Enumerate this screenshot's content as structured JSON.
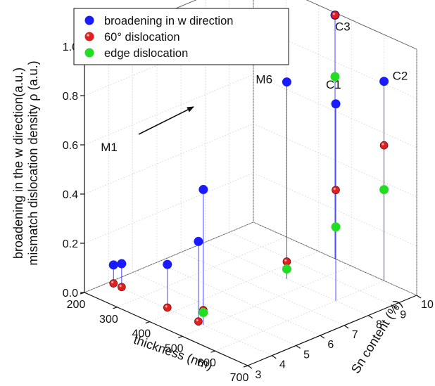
{
  "chart_data": {
    "type": "scatter",
    "dimensions": 3,
    "title": "",
    "xlabel": "thickness (nm)",
    "ylabel": "Sn content (%)",
    "zlabel_lines": [
      "broadening in the w direction(a.u.)",
      "mismatch dislocation density ρ (a.u.)"
    ],
    "x_ticks": [
      "200",
      "300",
      "400",
      "500",
      "600",
      "700"
    ],
    "y_ticks": [
      "3",
      "4",
      "5",
      "6",
      "7",
      "8",
      "9",
      "10"
    ],
    "z_ticks": [
      "0.0",
      "0.2",
      "0.4",
      "0.6",
      "0.8",
      "1.0"
    ],
    "xlim": [
      200,
      700
    ],
    "ylim": [
      3,
      10
    ],
    "zlim": [
      0,
      1
    ],
    "grid": true,
    "legend_position": "top-left",
    "series": [
      {
        "name": "broadening in w direction",
        "color": "#1a1aff",
        "points": [
          {
            "x": 215,
            "y": 4.0,
            "z": 0.08
          },
          {
            "x": 240,
            "y": 4.0,
            "z": 0.1
          },
          {
            "x": 380,
            "y": 4.0,
            "z": 0.18
          },
          {
            "x": 475,
            "y": 4.0,
            "z": 0.33
          },
          {
            "x": 490,
            "y": 4.0,
            "z": 0.55
          },
          {
            "x": 450,
            "y": 8.0,
            "z": 0.8
          },
          {
            "x": 600,
            "y": 8.0,
            "z": 0.8
          },
          {
            "x": 600,
            "y": 10.0,
            "z": 0.81
          },
          {
            "x": 450,
            "y": 10.0,
            "z": 0.99
          }
        ]
      },
      {
        "name": "60° dislocation",
        "color": "#e02020",
        "points": [
          {
            "x": 215,
            "y": 4.0,
            "z": 0.005
          },
          {
            "x": 240,
            "y": 4.0,
            "z": 0.005
          },
          {
            "x": 380,
            "y": 4.0,
            "z": 0.005
          },
          {
            "x": 475,
            "y": 4.0,
            "z": 0.005
          },
          {
            "x": 490,
            "y": 4.0,
            "z": 0.06
          },
          {
            "x": 450,
            "y": 8.0,
            "z": 0.07
          },
          {
            "x": 600,
            "y": 8.0,
            "z": 0.45
          },
          {
            "x": 600,
            "y": 10.0,
            "z": 0.55
          },
          {
            "x": 450,
            "y": 10.0,
            "z": 0.99
          }
        ]
      },
      {
        "name": "edge dislocation",
        "color": "#22dd22",
        "points": [
          {
            "x": 490,
            "y": 4.0,
            "z": 0.05
          },
          {
            "x": 450,
            "y": 8.0,
            "z": 0.04
          },
          {
            "x": 600,
            "y": 8.0,
            "z": 0.3
          },
          {
            "x": 600,
            "y": 10.0,
            "z": 0.37
          },
          {
            "x": 450,
            "y": 10.0,
            "z": 0.74
          }
        ]
      }
    ],
    "annotations": [
      {
        "text": "M1",
        "x": 215,
        "y": 4.0,
        "z": 0.08
      },
      {
        "text": "M6",
        "x": 450,
        "y": 8.0,
        "z": 0.8
      },
      {
        "text": "C1",
        "x": 600,
        "y": 8.0,
        "z": 0.8
      },
      {
        "text": "C2",
        "x": 600,
        "y": 10.0,
        "z": 0.81
      },
      {
        "text": "C3",
        "x": 450,
        "y": 10.0,
        "z": 0.99
      }
    ]
  }
}
